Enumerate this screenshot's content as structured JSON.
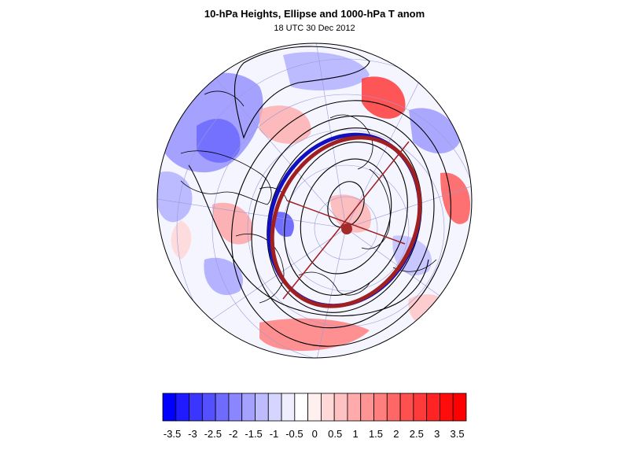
{
  "title": "10-hPa Heights, Ellipse and 1000-hPa T anom",
  "subtitle": "18 UTC 30 Dec 2012",
  "colors": {
    "negative_max": "#1a00ff",
    "positive_max": "#ff1a1a",
    "ellipse_blue": "#1010c0",
    "ellipse_red": "#a02020",
    "center_dot": "#a52a2a"
  },
  "colorbar": {
    "levels": [
      "-3.5",
      "-3",
      "-2.5",
      "-2",
      "-1.5",
      "-1",
      "-0.5",
      "0",
      "0.5",
      "1",
      "1.5",
      "2",
      "2.5",
      "3",
      "3.5"
    ],
    "colors": [
      "#0000ff",
      "#1f1aff",
      "#3a35ff",
      "#5550ff",
      "#6f6bff",
      "#8a86ff",
      "#a5a2ff",
      "#bebcff",
      "#d6d5ff",
      "#eeeeff",
      "#ffffff",
      "#fff0f0",
      "#ffd8d8",
      "#ffc2c2",
      "#ffabab",
      "#ff9494",
      "#ff7e7e",
      "#ff6767",
      "#ff5050",
      "#ff3a3a",
      "#ff2323",
      "#ff0d0d",
      "#ff0000"
    ]
  }
}
